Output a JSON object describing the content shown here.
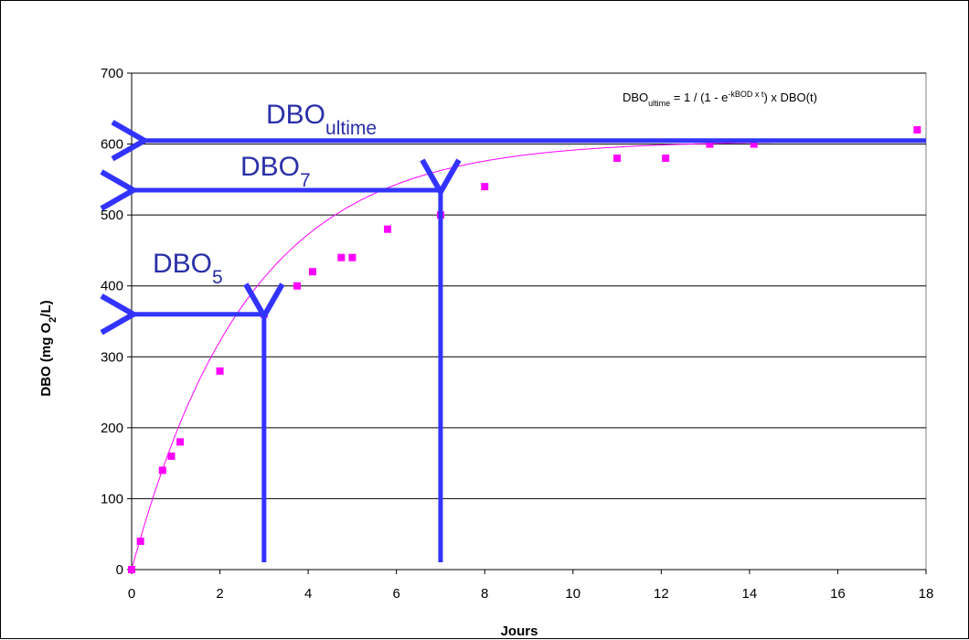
{
  "chart_data": {
    "type": "scatter",
    "xlabel": "Jours",
    "ylabel": {
      "prefix": "DBO (mg O",
      "sub": "2",
      "suffix": "/L)"
    },
    "xlim": [
      0,
      18
    ],
    "ylim": [
      0,
      700
    ],
    "x_ticks": [
      "0",
      "2",
      "4",
      "6",
      "8",
      "10",
      "12",
      "14",
      "16",
      "18"
    ],
    "y_ticks": [
      "0",
      "100",
      "200",
      "300",
      "400",
      "500",
      "600",
      "700"
    ],
    "grid": "horizontal",
    "colors": {
      "points": "#ff00ff",
      "curve": "#ff00ff",
      "arrows": "#3333ff",
      "labels": "#2a2fa8"
    },
    "series": [
      {
        "x": [
          0,
          0.2,
          0.7,
          0.9,
          1.1,
          2,
          3,
          3.75,
          4.1,
          4.75,
          5,
          5.8,
          7,
          8,
          11,
          12.1,
          13.1,
          14.1,
          17.8
        ],
        "y": [
          0,
          40,
          140,
          160,
          180,
          280,
          360,
          400,
          420,
          440,
          440,
          480,
          500,
          540,
          580,
          580,
          600,
          600,
          620
        ]
      }
    ],
    "fit_curve": {
      "equation": "y = 605 * (1 - exp(-0.38 * x))",
      "ultimate": 605,
      "k": 0.38
    },
    "annotations": {
      "formula": {
        "a": "DBO",
        "a_sub": "ultime",
        "b": " = 1 / (1 - e",
        "b_sup": "-kBOD x t",
        "c": ") x DBO(t)"
      },
      "dbo_ultime": {
        "main": "DBO",
        "sub": "ultime",
        "at_y": 605
      },
      "dbo_7": {
        "main": "DBO",
        "sub": "7",
        "at_x": 7,
        "at_y": 535
      },
      "dbo_5": {
        "main": "DBO",
        "sub": "5",
        "at_x": 3,
        "at_y": 360
      }
    }
  }
}
